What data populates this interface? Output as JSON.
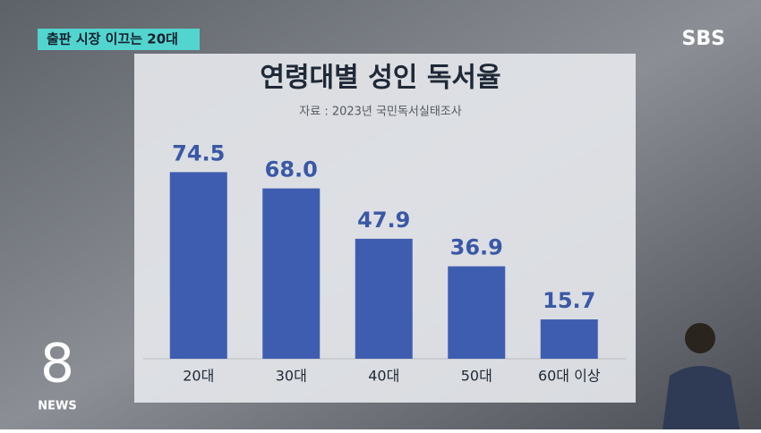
{
  "caption": "출판 시장 이끄는 20대",
  "broadcaster": "SBS",
  "logo": {
    "number": "8",
    "label": "NEWS"
  },
  "chart_data": {
    "type": "bar",
    "title": "연령대별 성인 독서율",
    "subtitle": "자료 : 2023년 국민독서실태조사",
    "categories": [
      "20대",
      "30대",
      "40대",
      "50대",
      "60대 이상"
    ],
    "values": [
      74.5,
      68.0,
      47.9,
      36.9,
      15.7
    ],
    "value_labels": [
      "74.5",
      "68.0",
      "47.9",
      "36.9",
      "15.7"
    ],
    "color": "#3f5db0"
  }
}
